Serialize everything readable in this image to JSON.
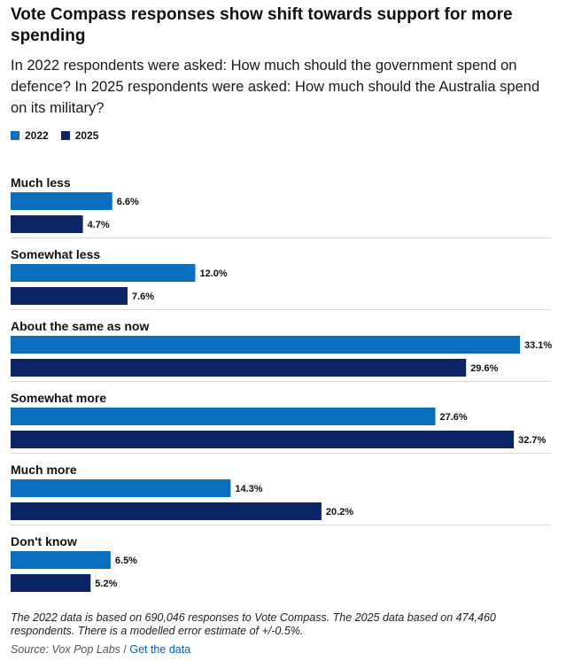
{
  "title": "Vote Compass responses show shift towards support for more spending",
  "subtitle": "In 2022 respondents were asked: How much should the government spend on defence? In 2025 respondents were asked: How much should the Australia spend on its military?",
  "legend": [
    {
      "name": "2022",
      "color": "#0a6fbf"
    },
    {
      "name": "2025",
      "color": "#0b2465"
    }
  ],
  "chart_data": {
    "type": "bar",
    "orientation": "horizontal",
    "title": "Vote Compass responses show shift towards support for more spending",
    "xlabel": "",
    "ylabel": "",
    "xlim": [
      0,
      33.1
    ],
    "unit": "%",
    "categories": [
      "Much less",
      "Somewhat less",
      "About the same as now",
      "Somewhat more",
      "Much more",
      "Don't know"
    ],
    "series": [
      {
        "name": "2022",
        "color": "#0a6fbf",
        "values": [
          6.6,
          12.0,
          33.1,
          27.6,
          14.3,
          6.5
        ],
        "labels": [
          "6.6%",
          "12.0%",
          "33.1%",
          "27.6%",
          "14.3%",
          "6.5%"
        ]
      },
      {
        "name": "2025",
        "color": "#0b2465",
        "values": [
          4.7,
          7.6,
          29.6,
          32.7,
          20.2,
          5.2
        ],
        "labels": [
          "4.7%",
          "7.6%",
          "29.6%",
          "32.7%",
          "20.2%",
          "5.2%"
        ]
      }
    ]
  },
  "footnote": "The 2022 data is based on 690,046 responses to Vote Compass. The 2025 data based on 474,460 respondents. There is a modelled error estimate of +/-0.5%.",
  "source": {
    "prefix": "Source: Vox Pop Labs",
    "separator": " / ",
    "link_text": "Get the data"
  }
}
